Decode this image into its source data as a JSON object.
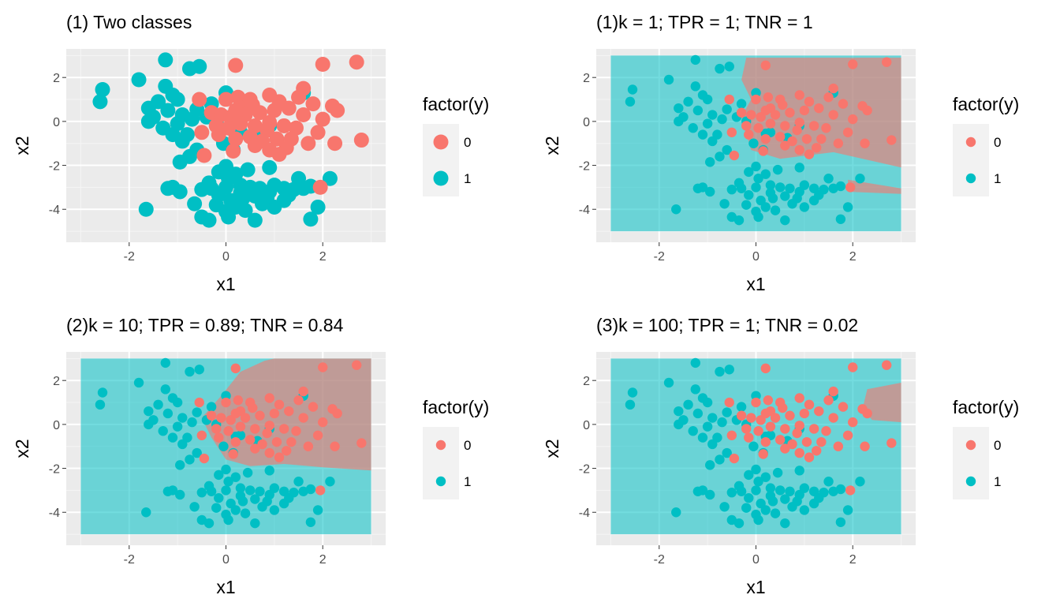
{
  "chart_data": [
    {
      "type": "scatter",
      "title": "(1) Two classes",
      "xlabel": "x1",
      "ylabel": "x2",
      "xlim": [
        -3.3,
        3.3
      ],
      "ylim": [
        -5.5,
        3.3
      ],
      "xticks": [
        -2,
        0,
        2
      ],
      "yticks": [
        2,
        0,
        -2,
        -4
      ],
      "xtick_labels": [
        "-2",
        "0",
        "2"
      ],
      "ytick_labels": [
        "2",
        "0",
        "-2",
        "-4"
      ],
      "grid": true,
      "point_size": "large",
      "decision_region": "none",
      "legend": {
        "title": "factor(y)",
        "placement": "right",
        "entries": [
          "0",
          "1"
        ]
      }
    },
    {
      "type": "scatter",
      "title": "(1)k = 1; TPR = 1; TNR = 1",
      "xlabel": "x1",
      "ylabel": "x2",
      "xlim": [
        -3.3,
        3.3
      ],
      "ylim": [
        -5.5,
        3.3
      ],
      "xticks": [
        -2,
        0,
        2
      ],
      "yticks": [
        2,
        0,
        -2,
        -4
      ],
      "xtick_labels": [
        "-2",
        "0",
        "2"
      ],
      "ytick_labels": [
        "2",
        "0",
        "-2",
        "-4"
      ],
      "grid": true,
      "point_size": "small",
      "decision_region": "k1",
      "region_extent": {
        "x": [
          -3,
          3
        ],
        "y": [
          -5,
          3
        ]
      },
      "legend": {
        "title": "factor(y)",
        "placement": "right",
        "entries": [
          "0",
          "1"
        ]
      }
    },
    {
      "type": "scatter",
      "title": "(2)k = 10; TPR = 0.89; TNR = 0.84",
      "xlabel": "x1",
      "ylabel": "x2",
      "xlim": [
        -3.3,
        3.3
      ],
      "ylim": [
        -5.5,
        3.3
      ],
      "xticks": [
        -2,
        0,
        2
      ],
      "yticks": [
        2,
        0,
        -2,
        -4
      ],
      "xtick_labels": [
        "-2",
        "0",
        "2"
      ],
      "ytick_labels": [
        "2",
        "0",
        "-2",
        "-4"
      ],
      "grid": true,
      "point_size": "small",
      "decision_region": "k10",
      "region_extent": {
        "x": [
          -3,
          3
        ],
        "y": [
          -5,
          3
        ]
      },
      "legend": {
        "title": "factor(y)",
        "placement": "right",
        "entries": [
          "0",
          "1"
        ]
      }
    },
    {
      "type": "scatter",
      "title": "(3)k = 100; TPR = 1; TNR = 0.02",
      "xlabel": "x1",
      "ylabel": "x2",
      "xlim": [
        -3.3,
        3.3
      ],
      "ylim": [
        -5.5,
        3.3
      ],
      "xticks": [
        -2,
        0,
        2
      ],
      "yticks": [
        2,
        0,
        -2,
        -4
      ],
      "xtick_labels": [
        "-2",
        "0",
        "2"
      ],
      "ytick_labels": [
        "2",
        "0",
        "-2",
        "-4"
      ],
      "grid": true,
      "point_size": "small",
      "decision_region": "k100",
      "region_extent": {
        "x": [
          -3,
          3
        ],
        "y": [
          -5,
          3
        ]
      },
      "legend": {
        "title": "factor(y)",
        "placement": "right",
        "entries": [
          "0",
          "1"
        ]
      }
    }
  ],
  "points": {
    "class0": [
      [
        0.2,
        2.55
      ],
      [
        2.0,
        2.6
      ],
      [
        2.7,
        2.7
      ],
      [
        0.0,
        1.0
      ],
      [
        0.25,
        1.1
      ],
      [
        0.5,
        1.0
      ],
      [
        0.9,
        1.2
      ],
      [
        1.1,
        0.9
      ],
      [
        1.6,
        1.5
      ],
      [
        1.5,
        1.1
      ],
      [
        2.2,
        0.7
      ],
      [
        2.3,
        0.5
      ],
      [
        1.8,
        0.8
      ],
      [
        0.3,
        0.6
      ],
      [
        0.55,
        0.75
      ],
      [
        -0.55,
        1.0
      ],
      [
        -0.3,
        0.4
      ],
      [
        -0.1,
        0.3
      ],
      [
        0.1,
        0.2
      ],
      [
        0.4,
        0.3
      ],
      [
        0.7,
        0.4
      ],
      [
        1.0,
        0.5
      ],
      [
        1.3,
        0.6
      ],
      [
        1.6,
        0.3
      ],
      [
        2.0,
        0.1
      ],
      [
        -0.2,
        -0.2
      ],
      [
        0.05,
        -0.3
      ],
      [
        0.3,
        -0.1
      ],
      [
        0.6,
        -0.2
      ],
      [
        0.85,
        -0.4
      ],
      [
        1.2,
        -0.2
      ],
      [
        1.45,
        -0.3
      ],
      [
        1.9,
        -0.5
      ],
      [
        -0.5,
        -0.5
      ],
      [
        -0.15,
        -0.6
      ],
      [
        0.2,
        -0.8
      ],
      [
        0.5,
        -0.7
      ],
      [
        0.75,
        -0.9
      ],
      [
        1.05,
        -0.8
      ],
      [
        1.35,
        -0.8
      ],
      [
        1.7,
        -1.0
      ],
      [
        2.25,
        -1.0
      ],
      [
        2.8,
        -0.85
      ],
      [
        0.15,
        -1.35
      ],
      [
        0.9,
        -1.3
      ],
      [
        1.25,
        -1.2
      ],
      [
        0.6,
        -1.1
      ],
      [
        -0.45,
        -1.55
      ],
      [
        1.1,
        -1.5
      ],
      [
        0.2,
        0.5
      ],
      [
        0.9,
        -0.05
      ],
      [
        1.95,
        -3.0
      ]
    ],
    "class1": [
      [
        -1.25,
        2.8
      ],
      [
        -0.75,
        2.4
      ],
      [
        -0.55,
        2.5
      ],
      [
        -1.8,
        1.9
      ],
      [
        -2.55,
        1.45
      ],
      [
        -2.6,
        0.9
      ],
      [
        -1.25,
        1.6
      ],
      [
        -1.4,
        0.9
      ],
      [
        -1.0,
        1.0
      ],
      [
        -1.1,
        1.2
      ],
      [
        0.0,
        1.3
      ],
      [
        1.6,
        1.3
      ],
      [
        -1.6,
        0.6
      ],
      [
        -1.2,
        0.5
      ],
      [
        -0.9,
        0.3
      ],
      [
        -0.6,
        0.55
      ],
      [
        -0.3,
        0.8
      ],
      [
        -1.5,
        0.2
      ],
      [
        -1.0,
        -0.1
      ],
      [
        -0.7,
        0.1
      ],
      [
        -1.3,
        -0.3
      ],
      [
        -0.8,
        -0.6
      ],
      [
        -1.6,
        0.0
      ],
      [
        -0.4,
        0.2
      ],
      [
        0.2,
        -0.55
      ],
      [
        0.3,
        -0.5
      ],
      [
        -0.9,
        -0.9
      ],
      [
        -1.1,
        -0.6
      ],
      [
        -0.2,
        0.0
      ],
      [
        0.9,
        -0.2
      ],
      [
        -0.75,
        -1.6
      ],
      [
        -0.95,
        -1.85
      ],
      [
        -0.6,
        -1.3
      ],
      [
        -0.05,
        -1.0
      ],
      [
        0.15,
        -1.3
      ],
      [
        0.65,
        -0.75
      ],
      [
        0.0,
        -2.05
      ],
      [
        -0.15,
        -2.3
      ],
      [
        0.05,
        -2.6
      ],
      [
        0.2,
        -2.4
      ],
      [
        0.9,
        -2.1
      ],
      [
        0.3,
        -2.9
      ],
      [
        0.0,
        -3.0
      ],
      [
        -0.3,
        -3.05
      ],
      [
        -0.5,
        -3.1
      ],
      [
        -0.35,
        -2.8
      ],
      [
        -1.1,
        -3.0
      ],
      [
        -1.2,
        -3.05
      ],
      [
        -0.95,
        -3.2
      ],
      [
        0.5,
        -3.0
      ],
      [
        0.7,
        -3.05
      ],
      [
        0.9,
        -3.2
      ],
      [
        1.0,
        -2.9
      ],
      [
        1.2,
        -3.05
      ],
      [
        1.4,
        -3.1
      ],
      [
        1.6,
        -3.05
      ],
      [
        1.75,
        -2.95
      ],
      [
        2.15,
        -2.6
      ],
      [
        1.5,
        -2.6
      ],
      [
        0.1,
        -3.6
      ],
      [
        0.35,
        -3.5
      ],
      [
        0.6,
        -3.4
      ],
      [
        0.85,
        -3.5
      ],
      [
        1.2,
        -3.6
      ],
      [
        0.2,
        -3.9
      ],
      [
        0.0,
        -4.1
      ],
      [
        -0.2,
        -3.8
      ],
      [
        -0.65,
        -3.75
      ],
      [
        -0.5,
        -4.35
      ],
      [
        0.05,
        -4.35
      ],
      [
        0.6,
        -4.5
      ],
      [
        1.75,
        -4.45
      ],
      [
        1.9,
        -3.9
      ],
      [
        -1.65,
        -4.0
      ],
      [
        -0.35,
        -4.5
      ],
      [
        0.4,
        -4.05
      ],
      [
        1.0,
        -3.9
      ],
      [
        0.75,
        -3.75
      ],
      [
        1.3,
        -3.35
      ],
      [
        0.45,
        -2.2
      ],
      [
        -0.15,
        -3.35
      ],
      [
        0.3,
        -3.25
      ]
    ]
  },
  "regions": {
    "k1": {
      "class0": [
        [
          [
            -0.2,
            2.9
          ],
          [
            3.0,
            2.9
          ],
          [
            3.0,
            -2.1
          ],
          [
            1.6,
            -1.4
          ],
          [
            0.5,
            -1.7
          ],
          [
            -0.1,
            -1.3
          ],
          [
            -0.3,
            0.2
          ],
          [
            -0.1,
            1.0
          ],
          [
            -0.3,
            1.9
          ],
          [
            -0.2,
            2.9
          ]
        ],
        [
          [
            1.9,
            -2.65
          ],
          [
            3.0,
            -3.05
          ],
          [
            3.0,
            -3.3
          ],
          [
            1.9,
            -3.2
          ]
        ]
      ]
    },
    "k10": {
      "class0": [
        [
          [
            1.0,
            3.0
          ],
          [
            3.0,
            3.0
          ],
          [
            3.0,
            -2.1
          ],
          [
            2.0,
            -1.95
          ],
          [
            1.2,
            -1.8
          ],
          [
            0.5,
            -1.9
          ],
          [
            0.0,
            -1.6
          ],
          [
            -0.3,
            -0.6
          ],
          [
            -0.5,
            0.3
          ],
          [
            -0.1,
            1.3
          ],
          [
            0.3,
            2.4
          ],
          [
            0.8,
            2.9
          ],
          [
            1.0,
            3.0
          ]
        ]
      ]
    },
    "k100": {
      "class0": [
        [
          [
            2.3,
            1.6
          ],
          [
            3.0,
            1.9
          ],
          [
            3.0,
            0.1
          ],
          [
            2.4,
            0.2
          ],
          [
            2.2,
            0.7
          ],
          [
            2.3,
            1.6
          ]
        ]
      ]
    }
  },
  "colors": {
    "class0": "#F8766D",
    "class1": "#00BFC4",
    "panel_bg": "#EBEBEB",
    "grid_major": "#FFFFFF",
    "grid_minor": "#F5F5F5",
    "legend_key_bg": "#F2F2F2",
    "tick_label": "#4D4D4D"
  }
}
